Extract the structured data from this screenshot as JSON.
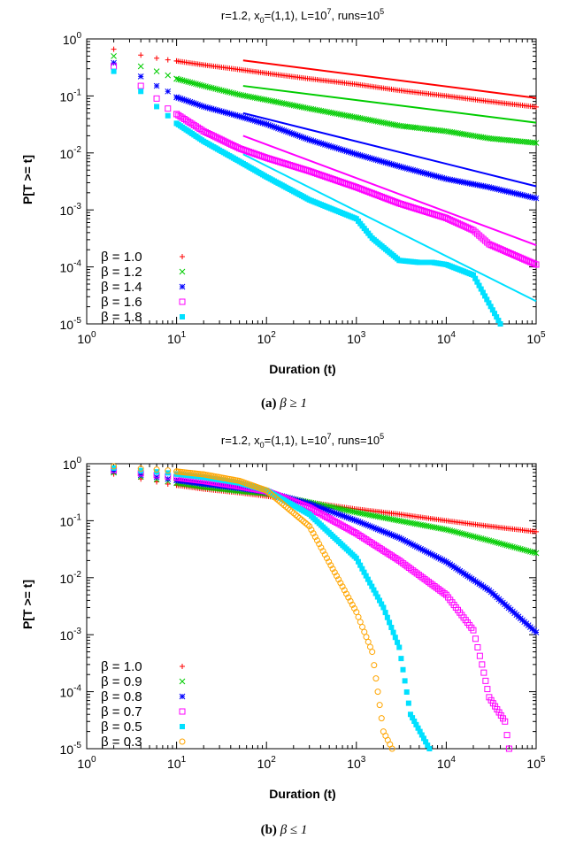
{
  "chart_data": [
    {
      "type": "scatter",
      "title": "r=1.2, x",
      "title_parts": {
        "x_sub": "0",
        "x_rest": "=(1,1), L=10",
        "L_exp": "7",
        "runs_pre": ", runs=10",
        "runs_exp": "5"
      },
      "xlabel": "Duration (t)",
      "ylabel": "P[T >= t]",
      "xscale": "log",
      "yscale": "log",
      "xlim": [
        1,
        100000
      ],
      "ylim": [
        1e-05,
        1
      ],
      "x_ticks": [
        {
          "base": "10",
          "exp": "0"
        },
        {
          "base": "10",
          "exp": "1"
        },
        {
          "base": "10",
          "exp": "2"
        },
        {
          "base": "10",
          "exp": "3"
        },
        {
          "base": "10",
          "exp": "4"
        },
        {
          "base": "10",
          "exp": "5"
        }
      ],
      "y_ticks": [
        {
          "base": "10",
          "exp": "0"
        },
        {
          "base": "10",
          "exp": "-1"
        },
        {
          "base": "10",
          "exp": "-2"
        },
        {
          "base": "10",
          "exp": "-3"
        },
        {
          "base": "10",
          "exp": "-4"
        },
        {
          "base": "10",
          "exp": "-5"
        }
      ],
      "legend_position": "bottom-left",
      "series": [
        {
          "name": "β = 1.0",
          "color": "#ff0000",
          "marker": "plus",
          "points": [
            [
              2,
              0.66
            ],
            [
              4,
              0.52
            ],
            [
              6,
              0.46
            ],
            [
              8,
              0.43
            ],
            [
              10,
              0.41
            ],
            [
              20,
              0.35
            ],
            [
              50,
              0.29
            ],
            [
              100,
              0.25
            ],
            [
              300,
              0.2
            ],
            [
              1000,
              0.16
            ],
            [
              3000,
              0.125
            ],
            [
              10000,
              0.1
            ],
            [
              30000,
              0.08
            ],
            [
              100000,
              0.064
            ]
          ],
          "fit": {
            "x": [
              55,
              100000
            ],
            "y": [
              0.42,
              0.092
            ]
          }
        },
        {
          "name": "β = 1.2",
          "color": "#00cc00",
          "marker": "x",
          "points": [
            [
              2,
              0.5
            ],
            [
              4,
              0.33
            ],
            [
              6,
              0.27
            ],
            [
              8,
              0.23
            ],
            [
              10,
              0.2
            ],
            [
              20,
              0.15
            ],
            [
              50,
              0.105
            ],
            [
              100,
              0.085
            ],
            [
              300,
              0.06
            ],
            [
              1000,
              0.042
            ],
            [
              3000,
              0.03
            ],
            [
              10000,
              0.024
            ],
            [
              30000,
              0.018
            ],
            [
              100000,
              0.015
            ]
          ],
          "fit": {
            "x": [
              55,
              100000
            ],
            "y": [
              0.15,
              0.034
            ]
          }
        },
        {
          "name": "β = 1.4",
          "color": "#0000ff",
          "marker": "star",
          "points": [
            [
              2,
              0.38
            ],
            [
              4,
              0.22
            ],
            [
              6,
              0.15
            ],
            [
              8,
              0.12
            ],
            [
              10,
              0.095
            ],
            [
              20,
              0.065
            ],
            [
              50,
              0.044
            ],
            [
              100,
              0.032
            ],
            [
              300,
              0.017
            ],
            [
              1000,
              0.0095
            ],
            [
              3000,
              0.0058
            ],
            [
              10000,
              0.0035
            ],
            [
              30000,
              0.0025
            ],
            [
              100000,
              0.0016
            ]
          ],
          "fit": {
            "x": [
              55,
              100000
            ],
            "y": [
              0.05,
              0.0026
            ]
          }
        },
        {
          "name": "β = 1.6",
          "color": "#ff00ff",
          "marker": "square",
          "points": [
            [
              2,
              0.33
            ],
            [
              4,
              0.15
            ],
            [
              6,
              0.09
            ],
            [
              8,
              0.06
            ],
            [
              10,
              0.048
            ],
            [
              20,
              0.024
            ],
            [
              50,
              0.012
            ],
            [
              100,
              0.0082
            ],
            [
              300,
              0.0048
            ],
            [
              1000,
              0.0025
            ],
            [
              3000,
              0.0013
            ],
            [
              10000,
              0.00072
            ],
            [
              20000,
              0.00044
            ],
            [
              30000,
              0.00025
            ],
            [
              100000,
              0.00011
            ]
          ],
          "fit": {
            "x": [
              55,
              100000
            ],
            "y": [
              0.02,
              0.00024
            ]
          }
        },
        {
          "name": "β = 1.8",
          "color": "#00e0ff",
          "marker": "filled-square",
          "points": [
            [
              2,
              0.27
            ],
            [
              4,
              0.12
            ],
            [
              6,
              0.065
            ],
            [
              8,
              0.045
            ],
            [
              10,
              0.033
            ],
            [
              20,
              0.016
            ],
            [
              50,
              0.0071
            ],
            [
              100,
              0.0038
            ],
            [
              300,
              0.0015
            ],
            [
              1000,
              0.0007
            ],
            [
              1500,
              0.00032
            ],
            [
              3000,
              0.00013
            ],
            [
              5000,
              0.00012
            ],
            [
              7000,
              0.00012
            ],
            [
              10000,
              0.00011
            ],
            [
              20000,
              7.2e-05
            ],
            [
              40000,
              1e-05
            ]
          ],
          "fit": {
            "x": [
              55,
              100000
            ],
            "y": [
              0.0095,
              2.5e-05
            ]
          }
        }
      ]
    },
    {
      "type": "scatter",
      "title": "r=1.2, x",
      "title_parts": {
        "x_sub": "0",
        "x_rest": "=(1,1), L=10",
        "L_exp": "7",
        "runs_pre": ", runs=10",
        "runs_exp": "5"
      },
      "xlabel": "Duration (t)",
      "ylabel": "P[T >= t]",
      "xscale": "log",
      "yscale": "log",
      "xlim": [
        1,
        100000
      ],
      "ylim": [
        1e-05,
        1
      ],
      "x_ticks": [
        {
          "base": "10",
          "exp": "0"
        },
        {
          "base": "10",
          "exp": "1"
        },
        {
          "base": "10",
          "exp": "2"
        },
        {
          "base": "10",
          "exp": "3"
        },
        {
          "base": "10",
          "exp": "4"
        },
        {
          "base": "10",
          "exp": "5"
        }
      ],
      "y_ticks": [
        {
          "base": "10",
          "exp": "0"
        },
        {
          "base": "10",
          "exp": "-1"
        },
        {
          "base": "10",
          "exp": "-2"
        },
        {
          "base": "10",
          "exp": "-3"
        },
        {
          "base": "10",
          "exp": "-4"
        },
        {
          "base": "10",
          "exp": "-5"
        }
      ],
      "legend_position": "bottom-left",
      "series": [
        {
          "name": "β = 1.0",
          "color": "#ff0000",
          "marker": "plus",
          "points": [
            [
              2,
              0.66
            ],
            [
              4,
              0.54
            ],
            [
              6,
              0.48
            ],
            [
              8,
              0.44
            ],
            [
              10,
              0.42
            ],
            [
              20,
              0.36
            ],
            [
              50,
              0.31
            ],
            [
              100,
              0.27
            ],
            [
              300,
              0.21
            ],
            [
              1000,
              0.16
            ],
            [
              3000,
              0.13
            ],
            [
              10000,
              0.1
            ],
            [
              30000,
              0.08
            ],
            [
              100000,
              0.064
            ]
          ]
        },
        {
          "name": "β = 0.9",
          "color": "#00cc00",
          "marker": "x",
          "points": [
            [
              2,
              0.7
            ],
            [
              4,
              0.59
            ],
            [
              6,
              0.53
            ],
            [
              8,
              0.49
            ],
            [
              10,
              0.46
            ],
            [
              20,
              0.39
            ],
            [
              50,
              0.33
            ],
            [
              100,
              0.3
            ],
            [
              300,
              0.21
            ],
            [
              1000,
              0.14
            ],
            [
              3000,
              0.1
            ],
            [
              10000,
              0.07
            ],
            [
              30000,
              0.045
            ],
            [
              100000,
              0.027
            ]
          ]
        },
        {
          "name": "β = 0.8",
          "color": "#0000ff",
          "marker": "star",
          "points": [
            [
              2,
              0.74
            ],
            [
              4,
              0.63
            ],
            [
              6,
              0.58
            ],
            [
              8,
              0.54
            ],
            [
              10,
              0.51
            ],
            [
              20,
              0.44
            ],
            [
              50,
              0.37
            ],
            [
              100,
              0.32
            ],
            [
              300,
              0.2
            ],
            [
              1000,
              0.1
            ],
            [
              3000,
              0.05
            ],
            [
              10000,
              0.019
            ],
            [
              30000,
              0.006
            ],
            [
              100000,
              0.0011
            ]
          ]
        },
        {
          "name": "β = 0.7",
          "color": "#ff00ff",
          "marker": "square",
          "points": [
            [
              2,
              0.78
            ],
            [
              4,
              0.68
            ],
            [
              6,
              0.63
            ],
            [
              8,
              0.6
            ],
            [
              10,
              0.57
            ],
            [
              20,
              0.5
            ],
            [
              50,
              0.4
            ],
            [
              100,
              0.33
            ],
            [
              300,
              0.17
            ],
            [
              1000,
              0.06
            ],
            [
              3000,
              0.02
            ],
            [
              10000,
              0.005
            ],
            [
              20000,
              0.0012
            ],
            [
              25000,
              0.0003
            ],
            [
              30000,
              8e-05
            ],
            [
              45000,
              3e-05
            ],
            [
              50000,
              1e-05
            ]
          ]
        },
        {
          "name": "β = 0.5",
          "color": "#00e0ff",
          "marker": "filled-square",
          "points": [
            [
              2,
              0.84
            ],
            [
              4,
              0.76
            ],
            [
              6,
              0.72
            ],
            [
              8,
              0.69
            ],
            [
              10,
              0.66
            ],
            [
              20,
              0.58
            ],
            [
              50,
              0.46
            ],
            [
              100,
              0.34
            ],
            [
              300,
              0.13
            ],
            [
              1000,
              0.022
            ],
            [
              2000,
              0.003
            ],
            [
              3000,
              0.0006
            ],
            [
              4000,
              4e-05
            ],
            [
              6500,
              1e-05
            ]
          ]
        },
        {
          "name": "β = 0.3",
          "color": "#ffa500",
          "marker": "circle",
          "points": [
            [
              2,
              0.9
            ],
            [
              4,
              0.82
            ],
            [
              6,
              0.79
            ],
            [
              8,
              0.76
            ],
            [
              10,
              0.73
            ],
            [
              20,
              0.65
            ],
            [
              50,
              0.5
            ],
            [
              100,
              0.34
            ],
            [
              300,
              0.08
            ],
            [
              700,
              0.007
            ],
            [
              1000,
              0.0025
            ],
            [
              1500,
              0.0005
            ],
            [
              2000,
              2e-05
            ],
            [
              2500,
              1e-05
            ]
          ]
        }
      ]
    }
  ],
  "captions": [
    {
      "label": "(a)",
      "text": "β ≥ 1"
    },
    {
      "label": "(b)",
      "text": "β ≤ 1"
    }
  ]
}
